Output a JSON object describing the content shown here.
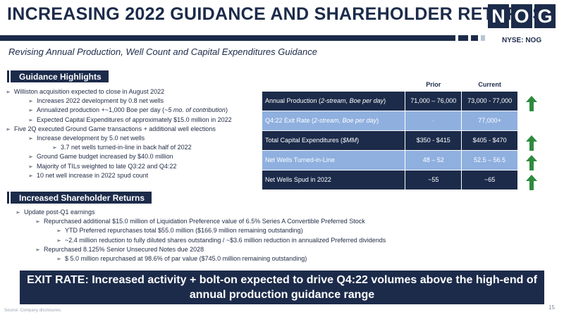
{
  "header": {
    "title": "INCREASING 2022 GUIDANCE AND SHAREHOLDER RETURNS",
    "logo_letters": [
      "N",
      "O",
      "G"
    ],
    "ticker": "NYSE: NOG",
    "subtitle": "Revising Annual Production, Well Count and Capital Expenditures Guidance"
  },
  "guidance_highlights": {
    "heading": "Guidance Highlights",
    "bullets": [
      {
        "level": 0,
        "text": "Williston acquisition expected to close in August 2022"
      },
      {
        "level": 1,
        "text": "Increases 2022 development by 0.8 net wells"
      },
      {
        "level": 1,
        "text": "Annualized production +~1,000 Boe per day (",
        "italic": "~5 mo. of contribution",
        "tail": ")"
      },
      {
        "level": 1,
        "text": "Expected Capital Expenditures of approximately $15.0 million in 2022"
      },
      {
        "level": 0,
        "text": "Five 2Q executed Ground Game transactions + additional well elections"
      },
      {
        "level": 1,
        "text": "Increase development by 5.0 net wells"
      },
      {
        "level": 2,
        "text": "3.7 net wells turned-in-line in back half of 2022"
      },
      {
        "level": 1,
        "text": "Ground Game budget increased by $40.0 million"
      },
      {
        "level": 1,
        "text": "Majority of TILs weighted to late Q3:22 and Q4:22"
      },
      {
        "level": 1,
        "text": "10 net well increase in 2022 spud count"
      }
    ]
  },
  "guidance_table": {
    "col_prior": "Prior",
    "col_current": "Current",
    "rows": [
      {
        "label": "Annual Production (",
        "label_italic": "2-stream, Boe per day",
        "label_tail": ")",
        "prior": "71,000 – 76,000",
        "current": "73,000 - 77,000",
        "style": "dark",
        "arrow": "up"
      },
      {
        "label": "Q4:22 Exit Rate (",
        "label_italic": "2-stream, Boe per day",
        "label_tail": ")",
        "prior": "-",
        "current": "77,000+",
        "style": "light",
        "arrow": ""
      },
      {
        "label": "Total Capital Expenditures (",
        "label_italic": "$MM",
        "label_tail": ")",
        "prior": "$350 - $415",
        "current": "$405 - $470",
        "style": "dark",
        "arrow": "up"
      },
      {
        "label": "Net Wells Turned-in-Line",
        "label_italic": "",
        "label_tail": "",
        "prior": "48 – 52",
        "current": "52.5 – 56.5",
        "style": "light",
        "arrow": "up"
      },
      {
        "label": "Net Wells Spud in 2022",
        "label_italic": "",
        "label_tail": "",
        "prior": "~55",
        "current": "~65",
        "style": "dark",
        "arrow": "up"
      }
    ]
  },
  "shareholder_returns": {
    "heading": "Increased Shareholder Returns",
    "bullets": [
      {
        "level": 0,
        "text": "Update post-Q1 earnings"
      },
      {
        "level": 1,
        "text": "Repurchased additional $15.0 million of Liquidation Preference value of 6.5% Series A Convertible Preferred Stock"
      },
      {
        "level": 2,
        "text": "YTD Preferred repurchases total $55.0 million ($166.9 million remaining outstanding)"
      },
      {
        "level": 2,
        "text": "~2.4 million reduction to fully diluted shares outstanding / ~$3.6 million reduction in annualized Preferred dividends"
      },
      {
        "level": 1,
        "text": "Repurchased 8.125% Senior Unsecured Notes due 2028"
      },
      {
        "level": 2,
        "text": "$ 5.0 million repurchased at 98.6% of par value ($745.0 million remaining outstanding)"
      }
    ]
  },
  "callout": {
    "line1": "EXIT RATE: Increased activity + bolt-on expected to drive Q4:22 volumes above the high-end of",
    "line2": "annual production guidance range"
  },
  "footer": {
    "source": "Source: Company disclosures.",
    "page_number": "15"
  },
  "colors": {
    "navy": "#1c2b4a",
    "light_blue": "#8fb0df",
    "arrow_green": "#2e8b3e"
  }
}
